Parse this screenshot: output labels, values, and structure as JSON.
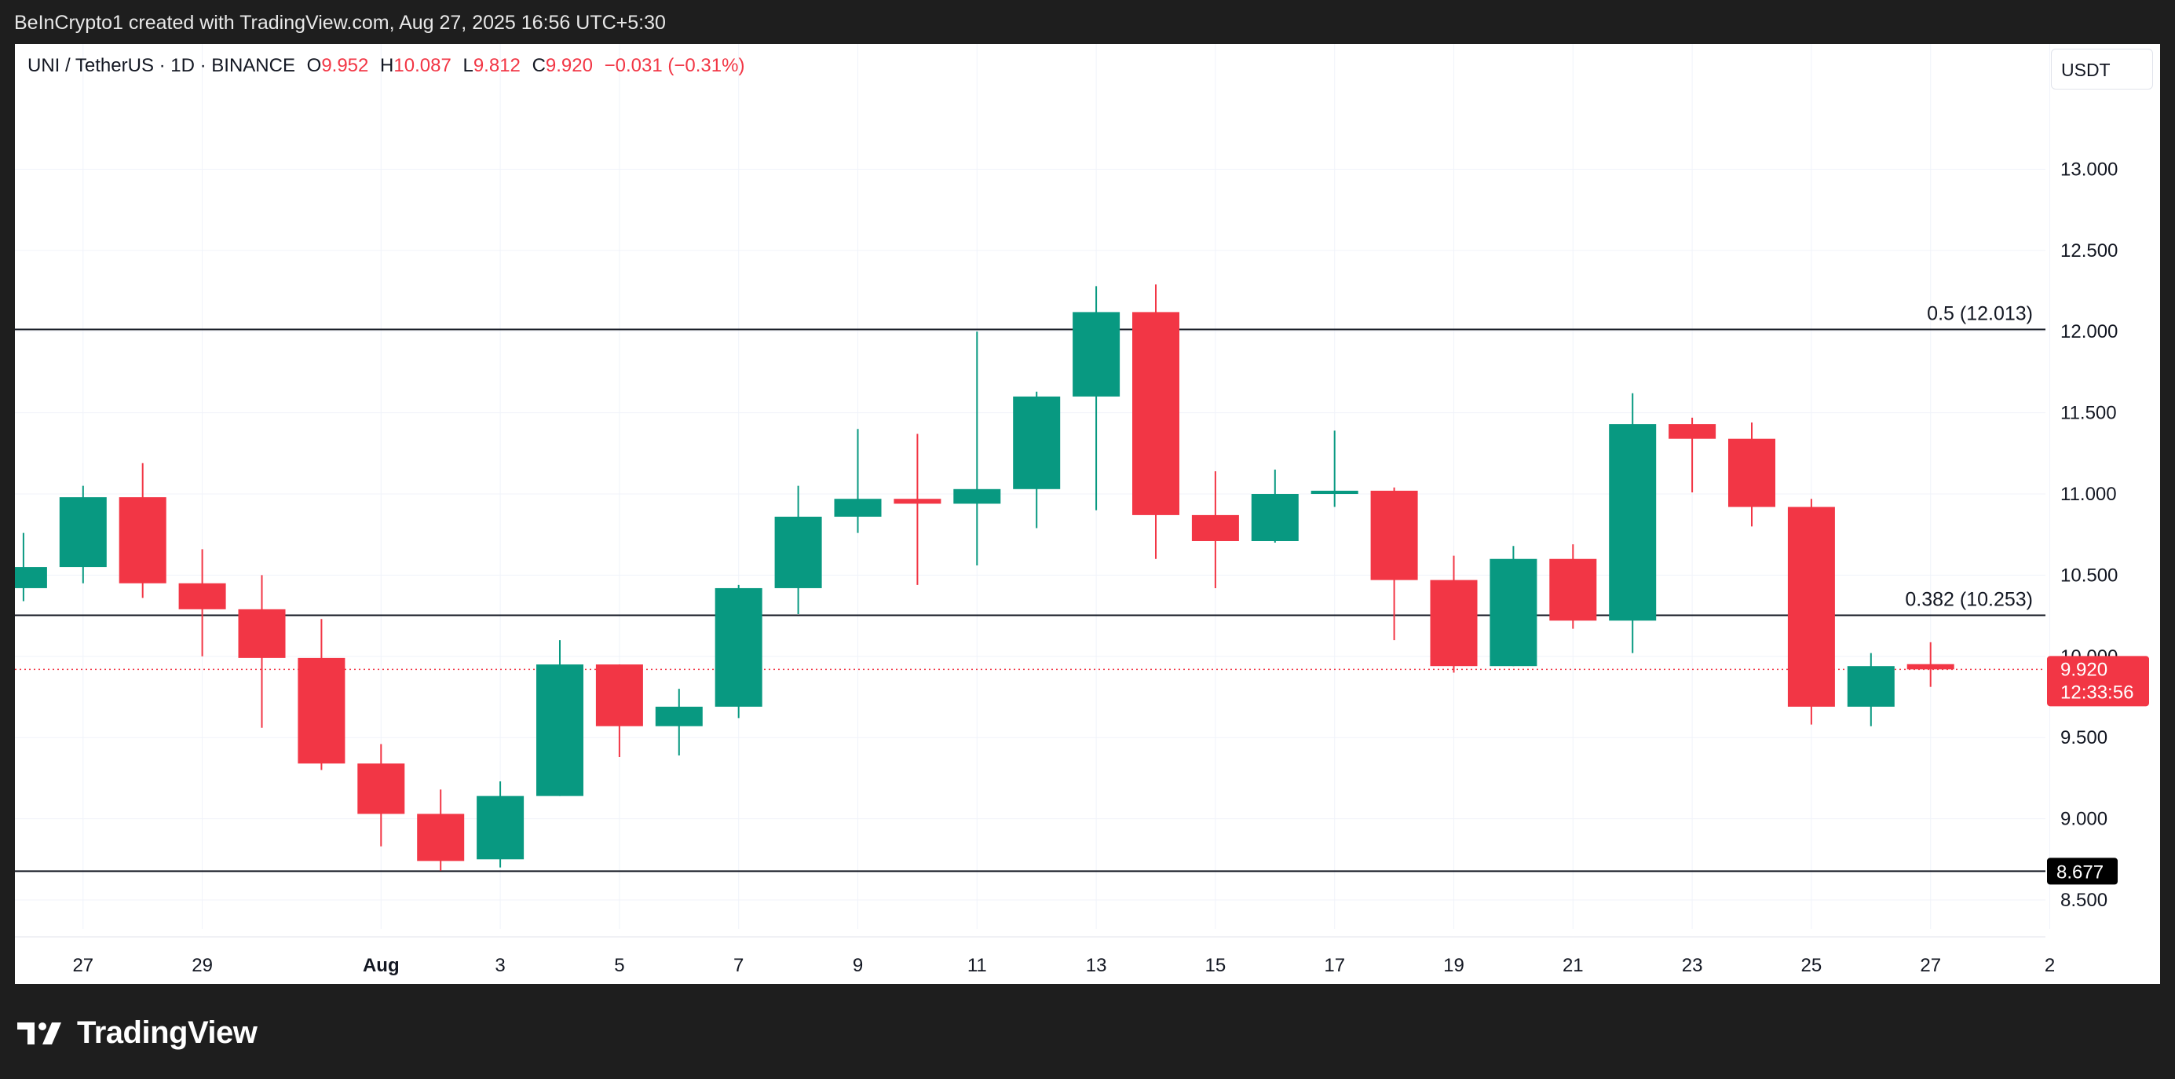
{
  "header": {
    "attribution": "BeInCrypto1 created with TradingView.com, Aug 27, 2025 16:56 UTC+5:30"
  },
  "legend": {
    "symbol": "UNI / TetherUS · 1D · BINANCE",
    "open_label": "O",
    "open": "9.952",
    "high_label": "H",
    "high": "10.087",
    "low_label": "L",
    "low": "9.812",
    "close_label": "C",
    "close": "9.920",
    "change": "−0.031 (−0.31%)"
  },
  "currency_button": "USDT",
  "footer": {
    "logo_text": "TradingView",
    "logo_icon": "tradingview-logo-icon"
  },
  "colors": {
    "up": "#089981",
    "down": "#f23645",
    "grid": "#f0f3fa",
    "axis_text": "#131722",
    "level_line": "#131722"
  },
  "chart_data": {
    "type": "candlestick",
    "ylim": [
      8.35,
      13.36
    ],
    "y_ticks": [
      "8.500",
      "9.000",
      "9.500",
      "10.000",
      "10.500",
      "11.000",
      "11.500",
      "12.000",
      "12.500",
      "13.000"
    ],
    "x_ticks": [
      {
        "label": "27",
        "index": 1
      },
      {
        "label": "29",
        "index": 3
      },
      {
        "label": "Aug",
        "index": 6
      },
      {
        "label": "3",
        "index": 8
      },
      {
        "label": "5",
        "index": 10
      },
      {
        "label": "7",
        "index": 12
      },
      {
        "label": "9",
        "index": 14
      },
      {
        "label": "11",
        "index": 16
      },
      {
        "label": "13",
        "index": 18
      },
      {
        "label": "15",
        "index": 20
      },
      {
        "label": "17",
        "index": 22
      },
      {
        "label": "19",
        "index": 24
      },
      {
        "label": "21",
        "index": 26
      },
      {
        "label": "23",
        "index": 28
      },
      {
        "label": "25",
        "index": 30
      },
      {
        "label": "27",
        "index": 32
      },
      {
        "label": "2",
        "index": 34
      }
    ],
    "candles": [
      {
        "o": 10.42,
        "h": 10.76,
        "l": 10.34,
        "c": 10.55
      },
      {
        "o": 10.55,
        "h": 11.05,
        "l": 10.45,
        "c": 10.98
      },
      {
        "o": 10.98,
        "h": 11.19,
        "l": 10.36,
        "c": 10.45
      },
      {
        "o": 10.45,
        "h": 10.66,
        "l": 10.0,
        "c": 10.29
      },
      {
        "o": 10.29,
        "h": 10.5,
        "l": 9.56,
        "c": 9.99
      },
      {
        "o": 9.99,
        "h": 10.23,
        "l": 9.3,
        "c": 9.34
      },
      {
        "o": 9.34,
        "h": 9.46,
        "l": 8.83,
        "c": 9.03
      },
      {
        "o": 9.03,
        "h": 9.18,
        "l": 8.68,
        "c": 8.74
      },
      {
        "o": 8.75,
        "h": 9.23,
        "l": 8.7,
        "c": 9.14
      },
      {
        "o": 9.14,
        "h": 10.1,
        "l": 9.14,
        "c": 9.95
      },
      {
        "o": 9.95,
        "h": 9.95,
        "l": 9.38,
        "c": 9.57
      },
      {
        "o": 9.57,
        "h": 9.8,
        "l": 9.39,
        "c": 9.69
      },
      {
        "o": 9.69,
        "h": 10.44,
        "l": 9.62,
        "c": 10.42
      },
      {
        "o": 10.42,
        "h": 11.05,
        "l": 10.26,
        "c": 10.86
      },
      {
        "o": 10.86,
        "h": 11.4,
        "l": 10.76,
        "c": 10.97
      },
      {
        "o": 10.97,
        "h": 11.37,
        "l": 10.44,
        "c": 10.94
      },
      {
        "o": 10.94,
        "h": 12.0,
        "l": 10.56,
        "c": 11.03
      },
      {
        "o": 11.03,
        "h": 11.63,
        "l": 10.79,
        "c": 11.6
      },
      {
        "o": 11.6,
        "h": 12.28,
        "l": 10.9,
        "c": 12.12
      },
      {
        "o": 12.12,
        "h": 12.29,
        "l": 10.6,
        "c": 10.87
      },
      {
        "o": 10.87,
        "h": 11.14,
        "l": 10.42,
        "c": 10.71
      },
      {
        "o": 10.71,
        "h": 11.15,
        "l": 10.7,
        "c": 11.0
      },
      {
        "o": 11.0,
        "h": 11.39,
        "l": 10.92,
        "c": 11.02
      },
      {
        "o": 11.02,
        "h": 11.04,
        "l": 10.1,
        "c": 10.47
      },
      {
        "o": 10.47,
        "h": 10.62,
        "l": 9.9,
        "c": 9.94
      },
      {
        "o": 9.94,
        "h": 10.68,
        "l": 9.94,
        "c": 10.6
      },
      {
        "o": 10.6,
        "h": 10.69,
        "l": 10.17,
        "c": 10.22
      },
      {
        "o": 10.22,
        "h": 11.62,
        "l": 10.02,
        "c": 11.43
      },
      {
        "o": 11.43,
        "h": 11.47,
        "l": 11.01,
        "c": 11.34
      },
      {
        "o": 11.34,
        "h": 11.44,
        "l": 10.8,
        "c": 10.92
      },
      {
        "o": 10.92,
        "h": 10.97,
        "l": 9.58,
        "c": 9.69
      },
      {
        "o": 9.69,
        "h": 10.02,
        "l": 9.57,
        "c": 9.94
      },
      {
        "o": 9.952,
        "h": 10.087,
        "l": 9.812,
        "c": 9.92
      }
    ],
    "levels": [
      {
        "label": "0.5 (12.013)",
        "value": 12.013,
        "style": "solid"
      },
      {
        "label": "0.382 (10.253)",
        "value": 10.253,
        "style": "solid"
      },
      {
        "label": "8.677",
        "value": 8.677,
        "style": "solid",
        "badge": true
      }
    ],
    "last_price": {
      "value": 9.92,
      "label": "9.920",
      "countdown": "12:33:56"
    }
  }
}
